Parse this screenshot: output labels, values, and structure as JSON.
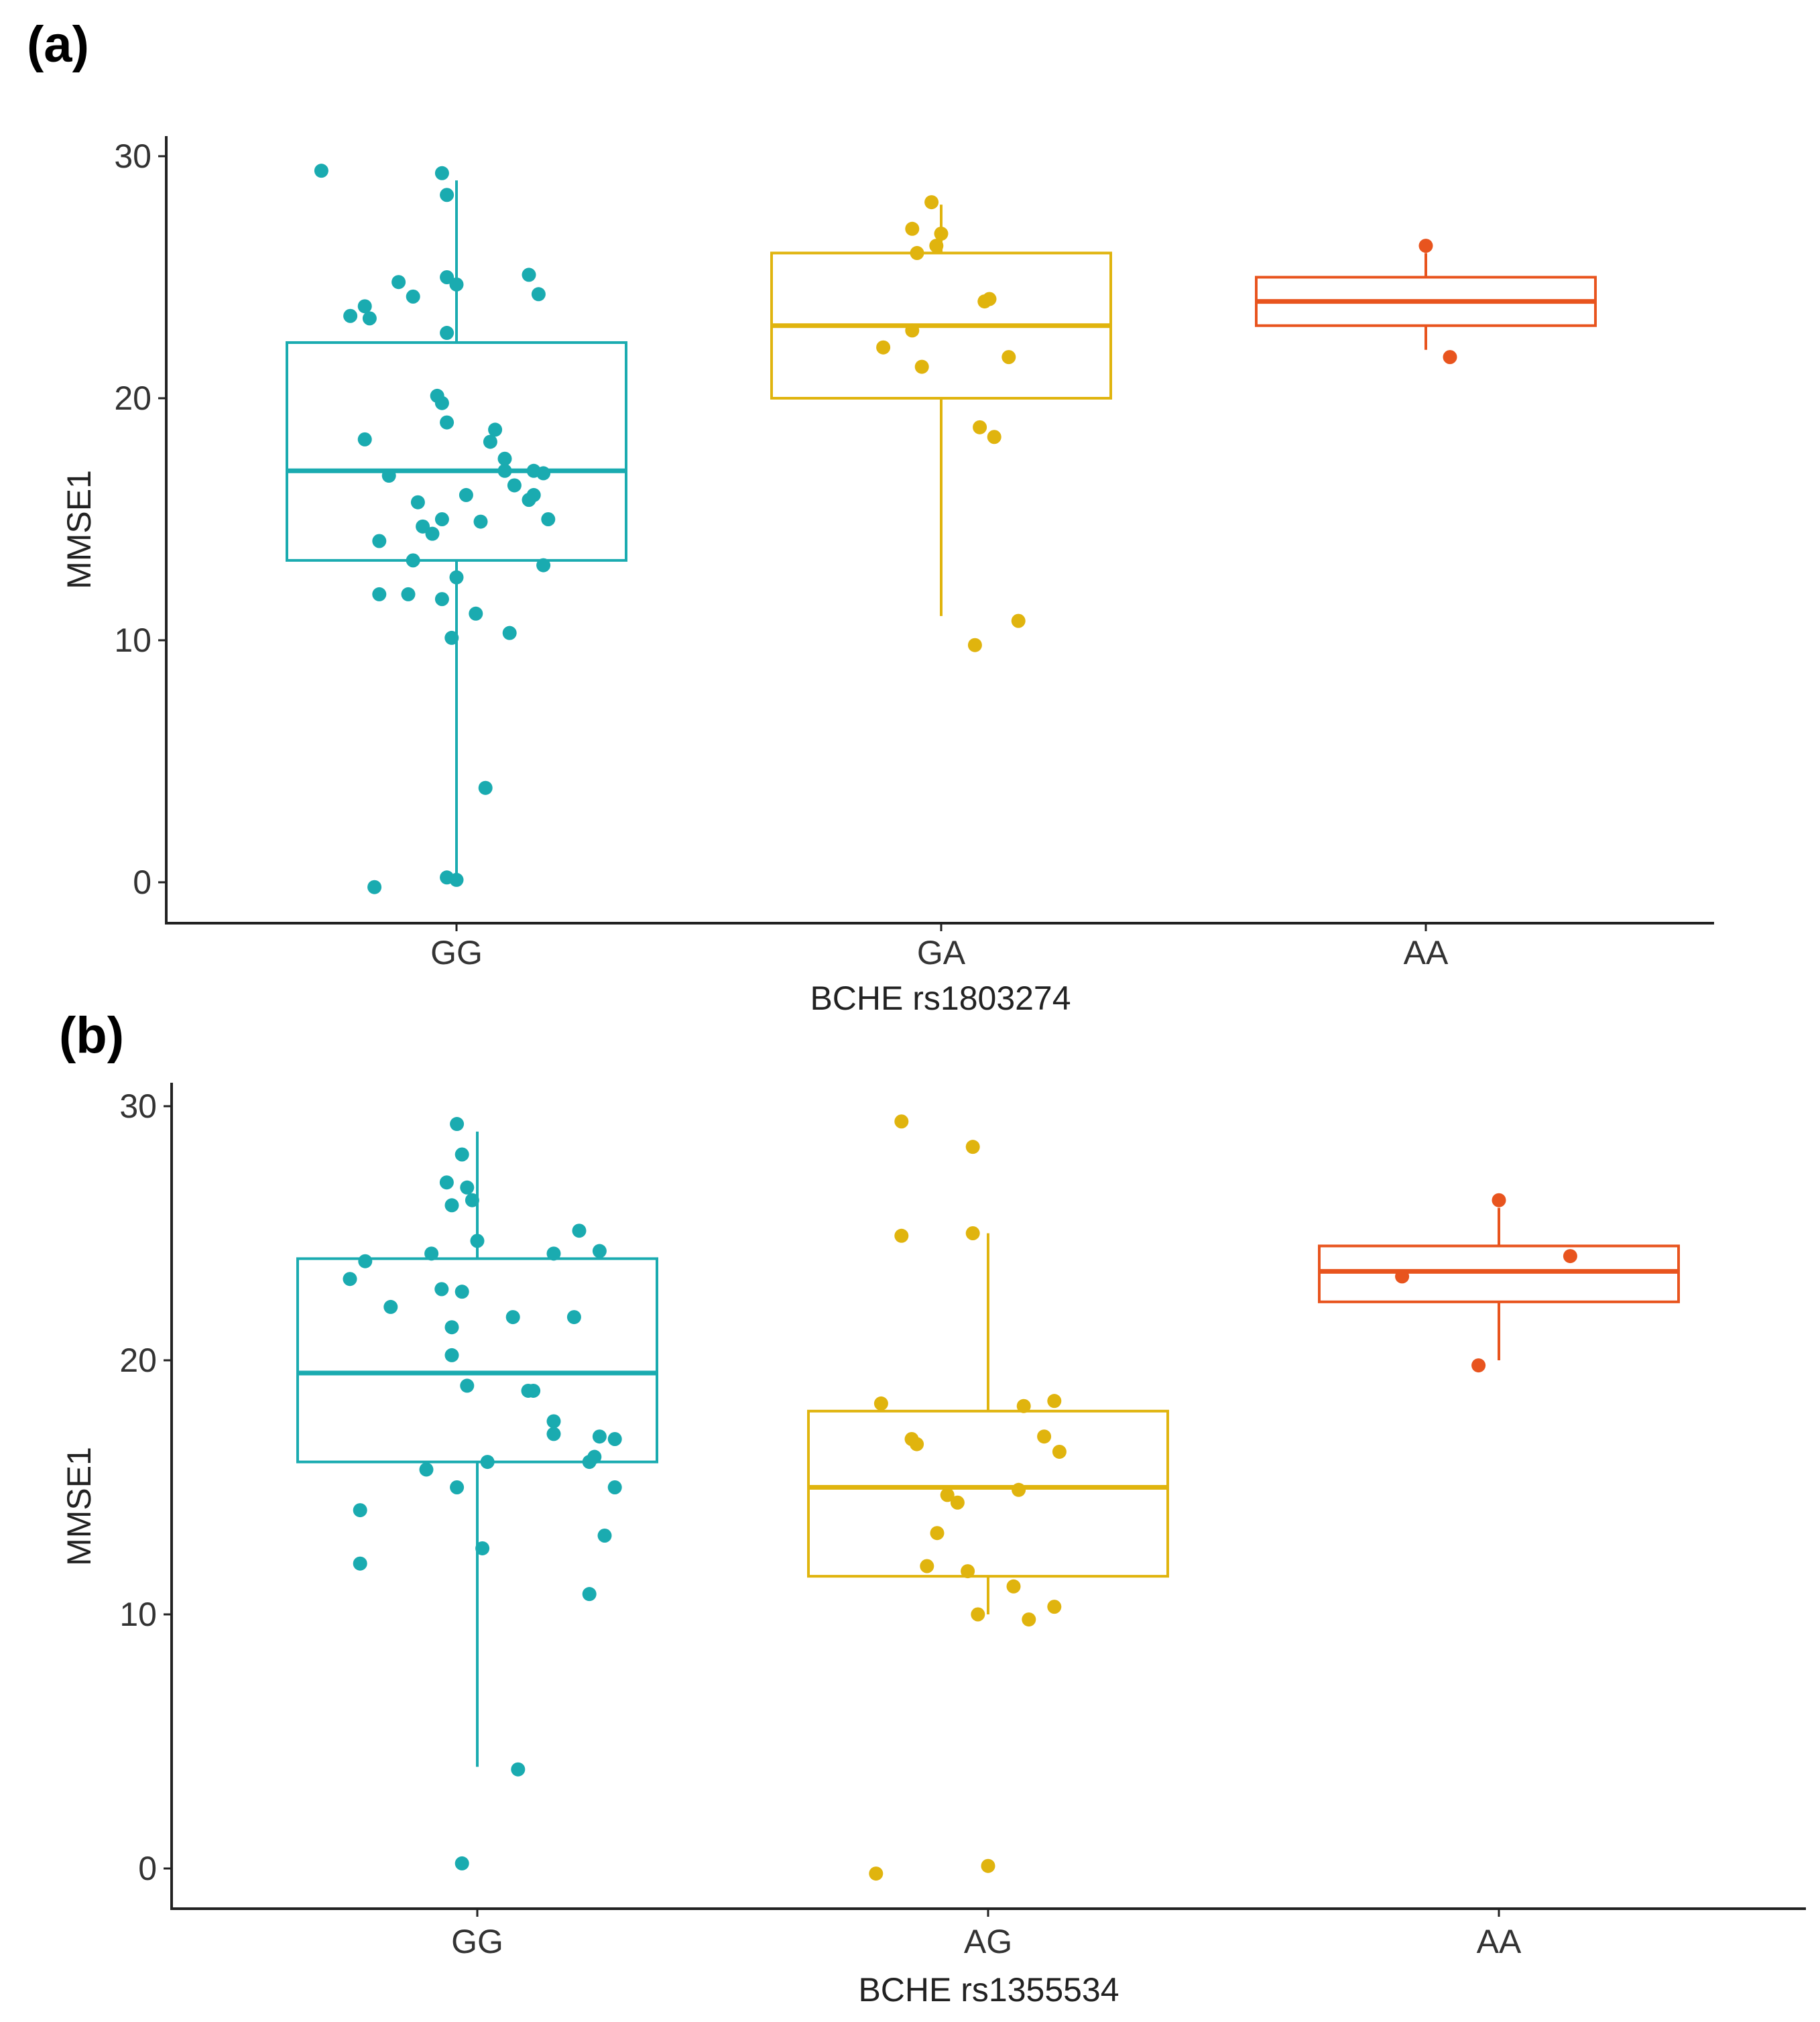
{
  "colors": {
    "GG": "#1AABB0",
    "GA": "#E0B40E",
    "AG": "#E0B40E",
    "AA": "#E8541E"
  },
  "chart_data": [
    {
      "type": "box",
      "panel_label": "(a)",
      "xlabel": "BCHE rs1803274",
      "ylabel": "MMSE1",
      "ylim": [
        -1.6,
        30.6
      ],
      "yticks": [
        0,
        10,
        20,
        30
      ],
      "categories": [
        "GG",
        "GA",
        "AA"
      ],
      "boxes": [
        {
          "group": "GG",
          "q1": 13.3,
          "median": 17.0,
          "q3": 22.3,
          "whisker_low": 0,
          "whisker_high": 29,
          "points": [
            [
              -0.28,
              29.4
            ],
            [
              -0.03,
              29.3
            ],
            [
              -0.02,
              28.4
            ],
            [
              -0.02,
              25.0
            ],
            [
              0.0,
              24.7
            ],
            [
              -0.12,
              24.8
            ],
            [
              -0.09,
              24.2
            ],
            [
              -0.18,
              23.3
            ],
            [
              -0.19,
              23.8
            ],
            [
              -0.22,
              23.4
            ],
            [
              0.15,
              25.1
            ],
            [
              0.17,
              24.3
            ],
            [
              -0.02,
              22.7
            ],
            [
              -0.04,
              20.1
            ],
            [
              -0.03,
              19.8
            ],
            [
              -0.02,
              19.0
            ],
            [
              0.07,
              18.2
            ],
            [
              0.08,
              18.7
            ],
            [
              -0.19,
              18.3
            ],
            [
              -0.14,
              16.8
            ],
            [
              0.1,
              17.5
            ],
            [
              0.1,
              17.0
            ],
            [
              0.16,
              17.0
            ],
            [
              0.18,
              16.9
            ],
            [
              0.12,
              16.4
            ],
            [
              0.16,
              16.0
            ],
            [
              0.15,
              15.8
            ],
            [
              0.02,
              16.0
            ],
            [
              -0.08,
              15.7
            ],
            [
              -0.07,
              14.7
            ],
            [
              -0.05,
              14.4
            ],
            [
              -0.03,
              15.0
            ],
            [
              0.05,
              14.9
            ],
            [
              0.19,
              15.0
            ],
            [
              -0.16,
              14.1
            ],
            [
              -0.09,
              13.3
            ],
            [
              0.18,
              13.1
            ],
            [
              0.0,
              12.6
            ],
            [
              -0.16,
              11.9
            ],
            [
              -0.1,
              11.9
            ],
            [
              -0.03,
              11.7
            ],
            [
              0.04,
              11.1
            ],
            [
              -0.01,
              10.1
            ],
            [
              0.11,
              10.3
            ],
            [
              0.06,
              3.9
            ],
            [
              -0.02,
              0.2
            ],
            [
              0.0,
              0.1
            ],
            [
              -0.17,
              -0.2
            ]
          ]
        },
        {
          "group": "GA",
          "q1": 20.0,
          "median": 23.0,
          "q3": 26.0,
          "whisker_low": 11,
          "whisker_high": 28,
          "points": [
            [
              -0.02,
              28.1
            ],
            [
              -0.06,
              27.0
            ],
            [
              0.0,
              26.8
            ],
            [
              -0.05,
              26.0
            ],
            [
              -0.01,
              26.3
            ],
            [
              0.1,
              24.1
            ],
            [
              0.09,
              24.0
            ],
            [
              -0.06,
              22.8
            ],
            [
              -0.12,
              22.1
            ],
            [
              -0.04,
              21.3
            ],
            [
              0.14,
              21.7
            ],
            [
              0.08,
              18.8
            ],
            [
              0.11,
              18.4
            ],
            [
              0.16,
              10.8
            ],
            [
              0.07,
              9.8
            ]
          ]
        },
        {
          "group": "AA",
          "q1": 23.0,
          "median": 24.0,
          "q3": 25.0,
          "whisker_low": 22,
          "whisker_high": 26,
          "points": [
            [
              0.0,
              26.3
            ],
            [
              0.05,
              21.7
            ]
          ]
        }
      ]
    },
    {
      "type": "box",
      "panel_label": "(b)",
      "xlabel": "BCHE rs1355534",
      "ylabel": "MMSE1",
      "ylim": [
        -1.8,
        30.8
      ],
      "yticks": [
        0,
        10,
        20,
        30
      ],
      "categories": [
        "GG",
        "AG",
        "AA"
      ],
      "boxes": [
        {
          "group": "GG",
          "q1": 16.0,
          "median": 19.5,
          "q3": 24.0,
          "whisker_low": 4,
          "whisker_high": 29,
          "points": [
            [
              -0.04,
              29.3
            ],
            [
              -0.03,
              28.1
            ],
            [
              -0.06,
              27.0
            ],
            [
              -0.02,
              26.8
            ],
            [
              -0.05,
              26.1
            ],
            [
              -0.01,
              26.3
            ],
            [
              0.2,
              25.1
            ],
            [
              0.24,
              24.3
            ],
            [
              0.15,
              24.2
            ],
            [
              -0.09,
              24.2
            ],
            [
              0.0,
              24.7
            ],
            [
              -0.22,
              23.9
            ],
            [
              -0.25,
              23.2
            ],
            [
              -0.07,
              22.8
            ],
            [
              -0.03,
              22.7
            ],
            [
              -0.17,
              22.1
            ],
            [
              -0.05,
              21.3
            ],
            [
              0.07,
              21.7
            ],
            [
              0.19,
              21.7
            ],
            [
              -0.05,
              20.2
            ],
            [
              -0.02,
              19.0
            ],
            [
              0.1,
              18.8
            ],
            [
              0.11,
              18.8
            ],
            [
              0.15,
              17.6
            ],
            [
              0.15,
              17.1
            ],
            [
              0.24,
              17.0
            ],
            [
              0.27,
              16.9
            ],
            [
              0.23,
              16.2
            ],
            [
              0.22,
              16.0
            ],
            [
              0.02,
              16.0
            ],
            [
              -0.1,
              15.7
            ],
            [
              -0.04,
              15.0
            ],
            [
              0.27,
              15.0
            ],
            [
              -0.23,
              14.1
            ],
            [
              0.25,
              13.1
            ],
            [
              0.01,
              12.6
            ],
            [
              -0.23,
              12.0
            ],
            [
              0.22,
              10.8
            ],
            [
              0.08,
              3.9
            ],
            [
              -0.03,
              0.2
            ]
          ]
        },
        {
          "group": "AG",
          "q1": 11.5,
          "median": 15.0,
          "q3": 18.0,
          "whisker_low": 10,
          "whisker_high": 25,
          "points": [
            [
              -0.17,
              29.4
            ],
            [
              -0.03,
              28.4
            ],
            [
              -0.17,
              24.9
            ],
            [
              -0.03,
              25.0
            ],
            [
              -0.21,
              18.3
            ],
            [
              0.07,
              18.2
            ],
            [
              0.13,
              18.4
            ],
            [
              -0.15,
              16.9
            ],
            [
              -0.14,
              16.7
            ],
            [
              0.11,
              17.0
            ],
            [
              0.14,
              16.4
            ],
            [
              -0.08,
              14.7
            ],
            [
              -0.06,
              14.4
            ],
            [
              0.06,
              14.9
            ],
            [
              -0.1,
              13.2
            ],
            [
              -0.12,
              11.9
            ],
            [
              -0.04,
              11.7
            ],
            [
              0.05,
              11.1
            ],
            [
              0.13,
              10.3
            ],
            [
              -0.02,
              10.0
            ],
            [
              0.08,
              9.8
            ],
            [
              -0.22,
              -0.2
            ],
            [
              0.0,
              0.1
            ]
          ]
        },
        {
          "group": "AA",
          "q1": 22.3,
          "median": 23.5,
          "q3": 24.5,
          "whisker_low": 20,
          "whisker_high": 26,
          "points": [
            [
              0.0,
              26.3
            ],
            [
              0.14,
              24.1
            ],
            [
              -0.19,
              23.3
            ],
            [
              -0.04,
              19.8
            ]
          ]
        }
      ]
    }
  ]
}
